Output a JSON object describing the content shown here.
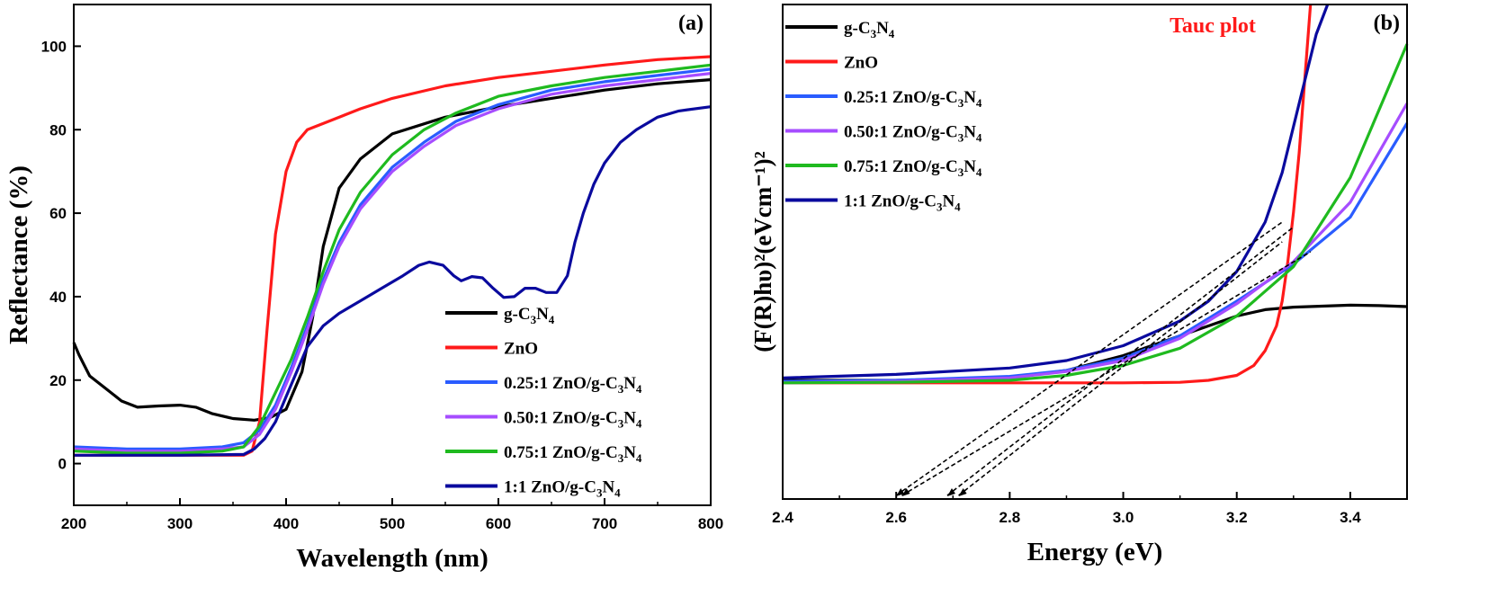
{
  "chart_data": [
    {
      "type": "line",
      "panel_label": "(a)",
      "xlabel": "Wavelength (nm)",
      "ylabel": "Reflectance (%)",
      "xlim": [
        200,
        800
      ],
      "ylim": [
        -10,
        110
      ],
      "xticks": [
        200,
        300,
        400,
        500,
        600,
        700,
        800
      ],
      "yticks": [
        0,
        20,
        40,
        60,
        80,
        100
      ],
      "legend_position": "bottom-right",
      "series": [
        {
          "name": "g-C3N4",
          "color": "#000000",
          "points": [
            [
              200,
              29
            ],
            [
              205,
              26
            ],
            [
              215,
              21
            ],
            [
              230,
              18
            ],
            [
              245,
              15
            ],
            [
              260,
              13.5
            ],
            [
              280,
              13.8
            ],
            [
              300,
              14
            ],
            [
              315,
              13.5
            ],
            [
              330,
              12
            ],
            [
              350,
              10.8
            ],
            [
              370,
              10.4
            ],
            [
              385,
              11
            ],
            [
              400,
              13
            ],
            [
              415,
              22
            ],
            [
              425,
              35
            ],
            [
              435,
              52
            ],
            [
              450,
              66
            ],
            [
              470,
              73
            ],
            [
              500,
              79
            ],
            [
              550,
              83
            ],
            [
              600,
              85.5
            ],
            [
              650,
              87.5
            ],
            [
              700,
              89.5
            ],
            [
              750,
              91
            ],
            [
              800,
              92
            ]
          ]
        },
        {
          "name": "ZnO",
          "color": "#ff1a1a",
          "points": [
            [
              200,
              2
            ],
            [
              300,
              2
            ],
            [
              360,
              2
            ],
            [
              368,
              3
            ],
            [
              375,
              10
            ],
            [
              382,
              32
            ],
            [
              390,
              55
            ],
            [
              400,
              70
            ],
            [
              410,
              77
            ],
            [
              420,
              80
            ],
            [
              440,
              82
            ],
            [
              470,
              85
            ],
            [
              500,
              87.5
            ],
            [
              550,
              90.5
            ],
            [
              600,
              92.5
            ],
            [
              650,
              94
            ],
            [
              700,
              95.5
            ],
            [
              750,
              96.8
            ],
            [
              800,
              97.5
            ]
          ]
        },
        {
          "name": "0.25:1 ZnO/g-C3N4",
          "color": "#2a5cff",
          "points": [
            [
              200,
              4
            ],
            [
              250,
              3.5
            ],
            [
              300,
              3.5
            ],
            [
              340,
              4
            ],
            [
              360,
              5
            ],
            [
              375,
              8
            ],
            [
              390,
              14
            ],
            [
              405,
              23
            ],
            [
              420,
              33
            ],
            [
              435,
              44
            ],
            [
              450,
              53
            ],
            [
              470,
              62
            ],
            [
              500,
              71
            ],
            [
              530,
              77
            ],
            [
              560,
              82
            ],
            [
              600,
              86
            ],
            [
              650,
              89.5
            ],
            [
              700,
              91.5
            ],
            [
              750,
              93
            ],
            [
              800,
              94.5
            ]
          ]
        },
        {
          "name": "0.50:1 ZnO/g-C3N4",
          "color": "#a64dff",
          "points": [
            [
              200,
              3.5
            ],
            [
              250,
              3
            ],
            [
              300,
              3
            ],
            [
              340,
              3.5
            ],
            [
              360,
              4
            ],
            [
              375,
              7
            ],
            [
              390,
              13
            ],
            [
              405,
              22
            ],
            [
              420,
              32
            ],
            [
              435,
              43
            ],
            [
              450,
              52
            ],
            [
              470,
              61
            ],
            [
              500,
              70
            ],
            [
              530,
              76
            ],
            [
              560,
              81
            ],
            [
              600,
              85
            ],
            [
              650,
              88.5
            ],
            [
              700,
              90.5
            ],
            [
              750,
              92
            ],
            [
              800,
              93.5
            ]
          ]
        },
        {
          "name": "0.75:1 ZnO/g-C3N4",
          "color": "#1fba1f",
          "points": [
            [
              200,
              3
            ],
            [
              250,
              2.5
            ],
            [
              300,
              2.5
            ],
            [
              340,
              3
            ],
            [
              360,
              4
            ],
            [
              375,
              9
            ],
            [
              390,
              17
            ],
            [
              405,
              25
            ],
            [
              420,
              35
            ],
            [
              435,
              46
            ],
            [
              450,
              56
            ],
            [
              470,
              65
            ],
            [
              500,
              74
            ],
            [
              530,
              80
            ],
            [
              560,
              84
            ],
            [
              600,
              88
            ],
            [
              650,
              90.5
            ],
            [
              700,
              92.5
            ],
            [
              750,
              94
            ],
            [
              800,
              95.5
            ]
          ]
        },
        {
          "name": "1:1 ZnO/g-C3N4",
          "color": "#0a0a9e",
          "points": [
            [
              200,
              2
            ],
            [
              300,
              2
            ],
            [
              360,
              2.2
            ],
            [
              370,
              3.5
            ],
            [
              380,
              6
            ],
            [
              390,
              10
            ],
            [
              400,
              16
            ],
            [
              410,
              22
            ],
            [
              420,
              28
            ],
            [
              435,
              33
            ],
            [
              450,
              36
            ],
            [
              470,
              39
            ],
            [
              490,
              42
            ],
            [
              510,
              45
            ],
            [
              525,
              47.5
            ],
            [
              535,
              48.3
            ],
            [
              548,
              47.5
            ],
            [
              558,
              45
            ],
            [
              565,
              43.8
            ],
            [
              575,
              44.8
            ],
            [
              585,
              44.5
            ],
            [
              595,
              42
            ],
            [
              605,
              39.8
            ],
            [
              615,
              40
            ],
            [
              625,
              42
            ],
            [
              635,
              42
            ],
            [
              645,
              41
            ],
            [
              655,
              41
            ],
            [
              665,
              45
            ],
            [
              672,
              53
            ],
            [
              680,
              60
            ],
            [
              690,
              67
            ],
            [
              700,
              72
            ],
            [
              715,
              77
            ],
            [
              730,
              80
            ],
            [
              750,
              83
            ],
            [
              770,
              84.5
            ],
            [
              800,
              85.5
            ]
          ]
        }
      ]
    },
    {
      "type": "line",
      "panel_label": "(b)",
      "annotation": "Tauc plot",
      "xlabel": "Energy (eV)",
      "ylabel": "(F(R)hυ)²(eVcm⁻¹)²",
      "xlim": [
        2.4,
        3.5
      ],
      "ylim": [
        0,
        100
      ],
      "xticks": [
        2.4,
        2.6,
        2.8,
        3.0,
        3.2,
        3.4
      ],
      "yticks": [],
      "legend_position": "top-left",
      "series": [
        {
          "name": "g-C3N4",
          "color": "#000000",
          "points": [
            [
              2.4,
              24
            ],
            [
              2.6,
              24
            ],
            [
              2.8,
              24.5
            ],
            [
              2.9,
              26
            ],
            [
              3.0,
              29
            ],
            [
              3.1,
              33
            ],
            [
              3.15,
              35
            ],
            [
              3.2,
              37
            ],
            [
              3.25,
              38.3
            ],
            [
              3.3,
              38.8
            ],
            [
              3.35,
              39
            ],
            [
              3.4,
              39.2
            ],
            [
              3.45,
              39.1
            ],
            [
              3.5,
              38.9
            ]
          ]
        },
        {
          "name": "ZnO",
          "color": "#ff1a1a",
          "points": [
            [
              2.4,
              23.5
            ],
            [
              2.8,
              23.5
            ],
            [
              3.0,
              23.5
            ],
            [
              3.1,
              23.6
            ],
            [
              3.15,
              24
            ],
            [
              3.2,
              25
            ],
            [
              3.23,
              27
            ],
            [
              3.25,
              30
            ],
            [
              3.27,
              35
            ],
            [
              3.28,
              40
            ],
            [
              3.29,
              48
            ],
            [
              3.3,
              58
            ],
            [
              3.31,
              70
            ],
            [
              3.32,
              85
            ],
            [
              3.33,
              100
            ]
          ]
        },
        {
          "name": "0.25:1 ZnO/g-C3N4",
          "color": "#2a5cff",
          "points": [
            [
              2.4,
              23.8
            ],
            [
              2.6,
              24
            ],
            [
              2.8,
              24.8
            ],
            [
              2.9,
              26
            ],
            [
              3.0,
              28.5
            ],
            [
              3.1,
              33
            ],
            [
              3.2,
              40
            ],
            [
              3.3,
              47.5
            ],
            [
              3.4,
              57
            ],
            [
              3.5,
              76
            ]
          ]
        },
        {
          "name": "0.50:1 ZnO/g-C3N4",
          "color": "#a64dff",
          "points": [
            [
              2.4,
              23.5
            ],
            [
              2.6,
              23.8
            ],
            [
              2.8,
              24.5
            ],
            [
              2.9,
              25.8
            ],
            [
              3.0,
              28
            ],
            [
              3.1,
              32.5
            ],
            [
              3.2,
              39.5
            ],
            [
              3.3,
              48
            ],
            [
              3.4,
              60
            ],
            [
              3.5,
              80
            ]
          ]
        },
        {
          "name": "0.75:1 ZnO/g-C3N4",
          "color": "#1fba1f",
          "points": [
            [
              2.4,
              23.5
            ],
            [
              2.6,
              23.6
            ],
            [
              2.8,
              24
            ],
            [
              2.9,
              25
            ],
            [
              3.0,
              27
            ],
            [
              3.1,
              30.5
            ],
            [
              3.2,
              37
            ],
            [
              3.3,
              47
            ],
            [
              3.4,
              65
            ],
            [
              3.5,
              92
            ]
          ]
        },
        {
          "name": "1:1 ZnO/g-C3N4",
          "color": "#0a0a9e",
          "points": [
            [
              2.4,
              24.5
            ],
            [
              2.6,
              25.2
            ],
            [
              2.8,
              26.5
            ],
            [
              2.9,
              28
            ],
            [
              3.0,
              31
            ],
            [
              3.1,
              36
            ],
            [
              3.15,
              40
            ],
            [
              3.2,
              46
            ],
            [
              3.25,
              56
            ],
            [
              3.28,
              66
            ],
            [
              3.31,
              80
            ],
            [
              3.34,
              94
            ],
            [
              3.36,
              100
            ]
          ]
        }
      ],
      "tangent_lines": [
        {
          "x1": 2.6,
          "y1": 0,
          "x2": 3.28,
          "y2": 56
        },
        {
          "x1": 2.61,
          "y1": 0,
          "x2": 3.33,
          "y2": 50
        },
        {
          "x1": 2.69,
          "y1": 0,
          "x2": 3.3,
          "y2": 55
        },
        {
          "x1": 2.71,
          "y1": 0,
          "x2": 3.28,
          "y2": 52
        }
      ]
    }
  ]
}
